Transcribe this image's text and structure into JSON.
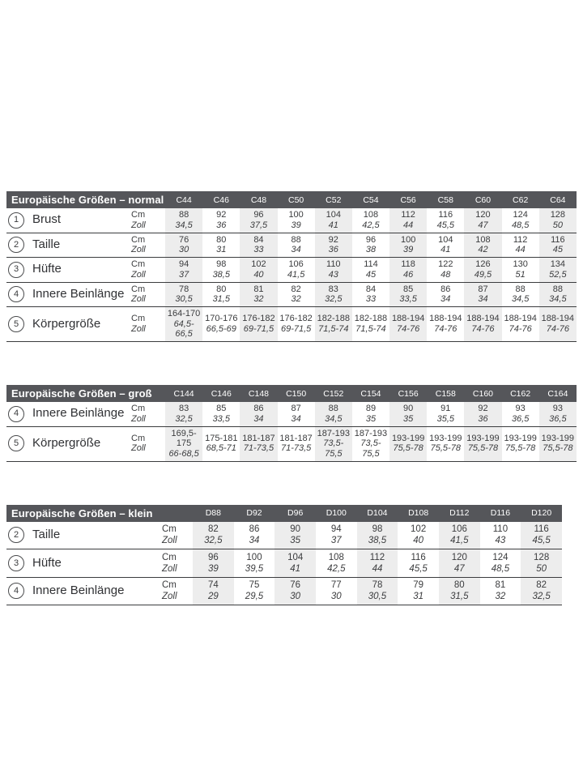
{
  "colors": {
    "header_bar": "#55565a",
    "header_text": "#ffffff",
    "stripe": "#ededed",
    "rule_line": "#3b3c3e",
    "text": "#3b3c3e"
  },
  "unit_labels": {
    "cm": "Cm",
    "zoll": "Zoll"
  },
  "tables": [
    {
      "id": "normal",
      "title": "Europäische Größen – normal",
      "columns": [
        "C44",
        "C46",
        "C48",
        "C50",
        "C52",
        "C54",
        "C56",
        "C58",
        "C60",
        "C62",
        "C64"
      ],
      "rows": [
        {
          "num": "1",
          "label": "Brust",
          "cm": [
            "88",
            "92",
            "96",
            "100",
            "104",
            "108",
            "112",
            "116",
            "120",
            "124",
            "128"
          ],
          "zoll": [
            "34,5",
            "36",
            "37,5",
            "39",
            "41",
            "42,5",
            "44",
            "45,5",
            "47",
            "48,5",
            "50"
          ]
        },
        {
          "num": "2",
          "label": "Taille",
          "cm": [
            "76",
            "80",
            "84",
            "88",
            "92",
            "96",
            "100",
            "104",
            "108",
            "112",
            "116"
          ],
          "zoll": [
            "30",
            "31",
            "33",
            "34",
            "36",
            "38",
            "39",
            "41",
            "42",
            "44",
            "45"
          ]
        },
        {
          "num": "3",
          "label": "Hüfte",
          "cm": [
            "94",
            "98",
            "102",
            "106",
            "110",
            "114",
            "118",
            "122",
            "126",
            "130",
            "134"
          ],
          "zoll": [
            "37",
            "38,5",
            "40",
            "41,5",
            "43",
            "45",
            "46",
            "48",
            "49,5",
            "51",
            "52,5"
          ]
        },
        {
          "num": "4",
          "label": "Innere Beinlänge",
          "cm": [
            "78",
            "80",
            "81",
            "82",
            "83",
            "84",
            "85",
            "86",
            "87",
            "88",
            "88"
          ],
          "zoll": [
            "30,5",
            "31,5",
            "32",
            "32",
            "32,5",
            "33",
            "33,5",
            "34",
            "34",
            "34,5",
            "34,5"
          ]
        },
        {
          "num": "5",
          "label": "Körpergröße",
          "cm": [
            "164-170",
            "170-176",
            "176-182",
            "176-182",
            "182-188",
            "182-188",
            "188-194",
            "188-194",
            "188-194",
            "188-194",
            "188-194"
          ],
          "zoll": [
            "64,5-66,5",
            "66,5-69",
            "69-71,5",
            "69-71,5",
            "71,5-74",
            "71,5-74",
            "74-76",
            "74-76",
            "74-76",
            "74-76",
            "74-76"
          ]
        }
      ]
    },
    {
      "id": "gross",
      "title": "Europäische Größen – groß",
      "columns": [
        "C144",
        "C146",
        "C148",
        "C150",
        "C152",
        "C154",
        "C156",
        "C158",
        "C160",
        "C162",
        "C164"
      ],
      "rows": [
        {
          "num": "4",
          "label": "Innere Beinlänge",
          "cm": [
            "83",
            "85",
            "86",
            "87",
            "88",
            "89",
            "90",
            "91",
            "92",
            "93",
            "93"
          ],
          "zoll": [
            "32,5",
            "33,5",
            "34",
            "34",
            "34,5",
            "35",
            "35",
            "35,5",
            "36",
            "36,5",
            "36,5"
          ]
        },
        {
          "num": "5",
          "label": "Körpergröße",
          "cm": [
            "169,5-175",
            "175-181",
            "181-187",
            "181-187",
            "187-193",
            "187-193",
            "193-199",
            "193-199",
            "193-199",
            "193-199",
            "193-199"
          ],
          "zoll": [
            "66-68,5",
            "68,5-71",
            "71-73,5",
            "71-73,5",
            "73,5-75,5",
            "73,5-75,5",
            "75,5-78",
            "75,5-78",
            "75,5-78",
            "75,5-78",
            "75,5-78"
          ]
        }
      ]
    },
    {
      "id": "klein",
      "title": "Europäische Größen – klein",
      "columns": [
        "D88",
        "D92",
        "D96",
        "D100",
        "D104",
        "D108",
        "D112",
        "D116",
        "D120"
      ],
      "rows": [
        {
          "num": "2",
          "label": "Taille",
          "cm": [
            "82",
            "86",
            "90",
            "94",
            "98",
            "102",
            "106",
            "110",
            "116"
          ],
          "zoll": [
            "32,5",
            "34",
            "35",
            "37",
            "38,5",
            "40",
            "41,5",
            "43",
            "45,5"
          ]
        },
        {
          "num": "3",
          "label": "Hüfte",
          "cm": [
            "96",
            "100",
            "104",
            "108",
            "112",
            "116",
            "120",
            "124",
            "128"
          ],
          "zoll": [
            "39",
            "39,5",
            "41",
            "42,5",
            "44",
            "45,5",
            "47",
            "48,5",
            "50"
          ]
        },
        {
          "num": "4",
          "label": "Innere Beinlänge",
          "cm": [
            "74",
            "75",
            "76",
            "77",
            "78",
            "79",
            "80",
            "81",
            "82"
          ],
          "zoll": [
            "29",
            "29,5",
            "30",
            "30",
            "30,5",
            "31",
            "31,5",
            "32",
            "32,5"
          ]
        }
      ]
    }
  ]
}
